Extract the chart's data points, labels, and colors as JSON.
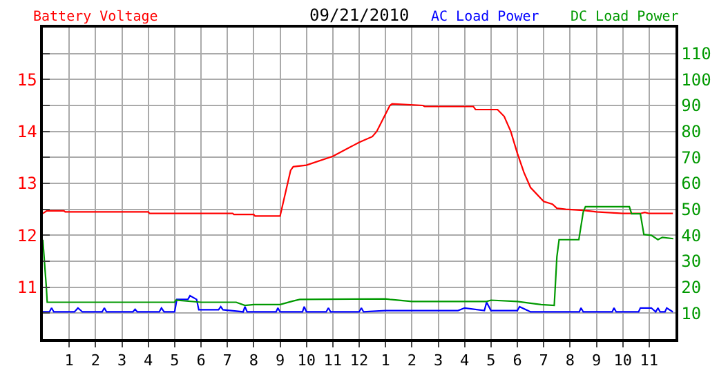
{
  "chart_data": {
    "type": "line",
    "title": "09/21/2010",
    "xlim": [
      "2010-09-21T00:00",
      "2010-09-22T00:00"
    ],
    "xticks": [
      {
        "value": "2010-09-21T01:00",
        "label": "1"
      },
      {
        "value": "2010-09-21T02:00",
        "label": "2"
      },
      {
        "value": "2010-09-21T03:00",
        "label": "3"
      },
      {
        "value": "2010-09-21T04:00",
        "label": "4"
      },
      {
        "value": "2010-09-21T05:00",
        "label": "5"
      },
      {
        "value": "2010-09-21T06:00",
        "label": "6"
      },
      {
        "value": "2010-09-21T07:00",
        "label": "7"
      },
      {
        "value": "2010-09-21T08:00",
        "label": "8"
      },
      {
        "value": "2010-09-21T09:00",
        "label": "9"
      },
      {
        "value": "2010-09-21T10:00",
        "label": "10"
      },
      {
        "value": "2010-09-21T11:00",
        "label": "11"
      },
      {
        "value": "2010-09-21T12:00",
        "label": "12"
      },
      {
        "value": "2010-09-21T13:00",
        "label": "1"
      },
      {
        "value": "2010-09-21T14:00",
        "label": "2"
      },
      {
        "value": "2010-09-21T15:00",
        "label": "3"
      },
      {
        "value": "2010-09-21T16:00",
        "label": "4"
      },
      {
        "value": "2010-09-21T17:00",
        "label": "5"
      },
      {
        "value": "2010-09-21T18:00",
        "label": "6"
      },
      {
        "value": "2010-09-21T19:00",
        "label": "7"
      },
      {
        "value": "2010-09-21T20:00",
        "label": "8"
      },
      {
        "value": "2010-09-21T21:00",
        "label": "9"
      },
      {
        "value": "2010-09-21T22:00",
        "label": "10"
      },
      {
        "value": "2010-09-21T23:00",
        "label": "11"
      }
    ],
    "ylim": [
      10,
      16
    ],
    "yticks": [
      {
        "value": 10.5,
        "label": null
      },
      11,
      {
        "value": 11.5,
        "label": null
      },
      12,
      {
        "value": 12.5,
        "label": null
      },
      13,
      {
        "value": 13.5,
        "label": null
      },
      14,
      {
        "value": 14.5,
        "label": null
      },
      15,
      {
        "value": 15.5,
        "label": null
      }
    ],
    "y2lim": [
      0,
      120
    ],
    "y2ticks": [
      10,
      20,
      30,
      40,
      50,
      60,
      70,
      80,
      90,
      100,
      110
    ],
    "grid": true,
    "series": [
      {
        "name": "Battery Voltage",
        "color": "#ff0000",
        "x": [
          "2010-09-21T00:00",
          "2010-09-21T00:09",
          "2010-09-21T00:48",
          "2010-09-21T00:51",
          "2010-09-21T04:00",
          "2010-09-21T04:03",
          "2010-09-21T07:12",
          "2010-09-21T07:15",
          "2010-09-21T08:00",
          "2010-09-21T08:03",
          "2010-09-21T09:00",
          "2010-09-21T09:15",
          "2010-09-21T09:24",
          "2010-09-21T09:30",
          "2010-09-21T10:00",
          "2010-09-21T11:00",
          "2010-09-21T12:00",
          "2010-09-21T12:30",
          "2010-09-21T12:40",
          "2010-09-21T12:55",
          "2010-09-21T13:10",
          "2010-09-21T13:15",
          "2010-09-21T14:25",
          "2010-09-21T14:29",
          "2010-09-21T16:20",
          "2010-09-21T16:25",
          "2010-09-21T17:15",
          "2010-09-21T17:30",
          "2010-09-21T17:45",
          "2010-09-21T18:00",
          "2010-09-21T18:15",
          "2010-09-21T18:30",
          "2010-09-21T19:00",
          "2010-09-21T19:20",
          "2010-09-21T19:30",
          "2010-09-21T19:50",
          "2010-09-21T20:30",
          "2010-09-21T21:00",
          "2010-09-21T22:00",
          "2010-09-21T22:40",
          "2010-09-21T22:50",
          "2010-09-21T23:00",
          "2010-09-21T23:54"
        ],
        "values": [
          12.42,
          12.47,
          12.47,
          12.45,
          12.45,
          12.42,
          12.42,
          12.4,
          12.4,
          12.37,
          12.37,
          12.92,
          13.25,
          13.32,
          13.35,
          13.52,
          13.79,
          13.9,
          14.0,
          14.25,
          14.5,
          14.53,
          14.5,
          14.48,
          14.48,
          14.42,
          14.42,
          14.29,
          14.0,
          13.58,
          13.21,
          12.92,
          12.65,
          12.6,
          12.52,
          12.5,
          12.48,
          12.45,
          12.42,
          12.42,
          12.44,
          12.42,
          12.42
        ]
      },
      {
        "name": "AC Load Power",
        "color": "#0000ff",
        "axis": "y2",
        "x": [
          "2010-09-21T00:00",
          "2010-09-21T00:15",
          "2010-09-21T00:20",
          "2010-09-21T00:25",
          "2010-09-21T01:12",
          "2010-09-21T01:20",
          "2010-09-21T01:30",
          "2010-09-21T02:15",
          "2010-09-21T02:20",
          "2010-09-21T02:25",
          "2010-09-21T03:25",
          "2010-09-21T03:30",
          "2010-09-21T03:35",
          "2010-09-21T04:25",
          "2010-09-21T04:30",
          "2010-09-21T04:36",
          "2010-09-21T05:00",
          "2010-09-21T05:05",
          "2010-09-21T05:30",
          "2010-09-21T05:35",
          "2010-09-21T05:50",
          "2010-09-21T05:55",
          "2010-09-21T06:40",
          "2010-09-21T06:45",
          "2010-09-21T06:50",
          "2010-09-21T07:36",
          "2010-09-21T07:40",
          "2010-09-21T07:45",
          "2010-09-21T08:51",
          "2010-09-21T08:55",
          "2010-09-21T09:00",
          "2010-09-21T09:51",
          "2010-09-21T09:55",
          "2010-09-21T10:00",
          "2010-09-21T10:45",
          "2010-09-21T10:50",
          "2010-09-21T10:55",
          "2010-09-21T12:00",
          "2010-09-21T12:05",
          "2010-09-21T12:10",
          "2010-09-21T13:00",
          "2010-09-21T13:30",
          "2010-09-21T15:45",
          "2010-09-21T16:00",
          "2010-09-21T16:45",
          "2010-09-21T16:50",
          "2010-09-21T17:00",
          "2010-09-21T18:00",
          "2010-09-21T18:05",
          "2010-09-21T18:30",
          "2010-09-21T20:21",
          "2010-09-21T20:25",
          "2010-09-21T20:30",
          "2010-09-21T21:36",
          "2010-09-21T21:40",
          "2010-09-21T21:45",
          "2010-09-21T22:36",
          "2010-09-21T22:40",
          "2010-09-21T23:05",
          "2010-09-21T23:15",
          "2010-09-21T23:20",
          "2010-09-21T23:25",
          "2010-09-21T23:36",
          "2010-09-21T23:40",
          "2010-09-21T23:54"
        ],
        "values": [
          10.5,
          10.5,
          12,
          10.5,
          10.5,
          12,
          10.5,
          10.5,
          12,
          10.5,
          10.5,
          11.5,
          10.5,
          10.5,
          12,
          10.5,
          10.5,
          15.3,
          15.3,
          16.7,
          15.3,
          11.3,
          11.3,
          12.5,
          11.3,
          10.5,
          12.5,
          10.5,
          10.5,
          12,
          10.5,
          10.5,
          12.5,
          10.5,
          10.5,
          12,
          10.5,
          10.5,
          12,
          10.5,
          11,
          11,
          11,
          12,
          11,
          14.2,
          11,
          11,
          12.5,
          10.5,
          10.5,
          12,
          10.5,
          10.5,
          12,
          10.5,
          10.5,
          12,
          12,
          10.5,
          12,
          10.5,
          10.5,
          12,
          10.5
        ]
      },
      {
        "name": "DC Load Power",
        "color": "#009900",
        "axis": "y2",
        "x": [
          "2010-09-21T00:00",
          "2010-09-21T00:08",
          "2010-09-21T00:10",
          "2010-09-21T05:00",
          "2010-09-21T05:03",
          "2010-09-21T06:00",
          "2010-09-21T07:20",
          "2010-09-21T07:40",
          "2010-09-21T08:00",
          "2010-09-21T09:00",
          "2010-09-21T09:30",
          "2010-09-21T09:45",
          "2010-09-21T13:00",
          "2010-09-21T13:10",
          "2010-09-21T14:00",
          "2010-09-21T16:50",
          "2010-09-21T17:00",
          "2010-09-21T18:00",
          "2010-09-21T18:54",
          "2010-09-21T19:24",
          "2010-09-21T19:30",
          "2010-09-21T19:35",
          "2010-09-21T20:20",
          "2010-09-21T20:30",
          "2010-09-21T20:35",
          "2010-09-21T22:15",
          "2010-09-21T22:20",
          "2010-09-21T22:40",
          "2010-09-21T22:48",
          "2010-09-21T23:05",
          "2010-09-21T23:20",
          "2010-09-21T23:30",
          "2010-09-21T23:55"
        ],
        "values": [
          38.3,
          20,
          14.2,
          14.2,
          15,
          14.2,
          14.2,
          13,
          13.3,
          13.3,
          14.7,
          15.3,
          15.5,
          15.3,
          14.5,
          14.5,
          15,
          14.5,
          13.3,
          13,
          31.7,
          38.3,
          38.3,
          49,
          51,
          51,
          48.3,
          48.3,
          40.3,
          40,
          38.3,
          39.2,
          38.7
        ]
      }
    ]
  }
}
